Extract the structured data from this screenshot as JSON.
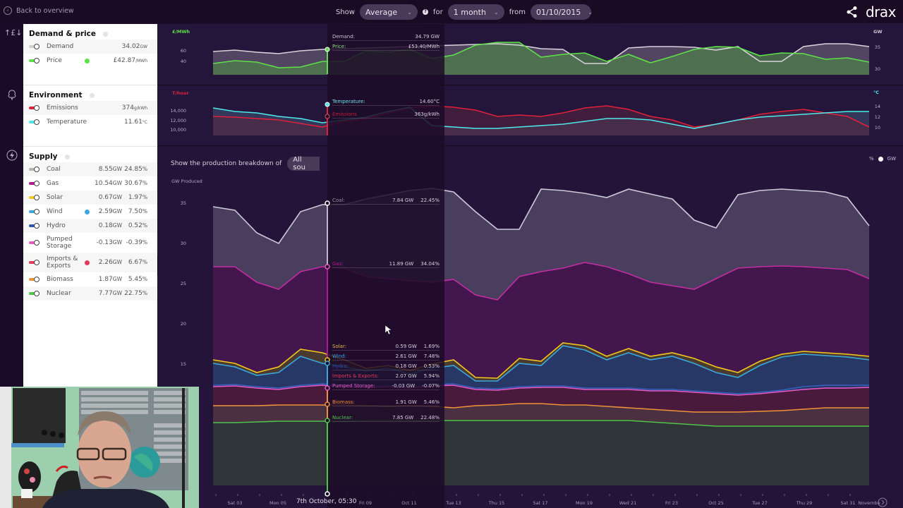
{
  "topbar": {
    "back_label": "Back to overview",
    "show_label": "Show",
    "show_value": "Average",
    "for_label": "for",
    "period_value": "1 month",
    "from_label": "from",
    "date_value": "01/10/2015",
    "brand": "drax"
  },
  "sidebar": {
    "demand_price": {
      "title": "Demand & price",
      "items": [
        {
          "label": "Demand",
          "value": "34.02",
          "unit": "GW",
          "color": "#cfcfcf"
        },
        {
          "label": "Price",
          "value": "£42.87",
          "unit": "/MWh",
          "color": "#5fe04a",
          "badge": "#5fe04a"
        }
      ]
    },
    "environment": {
      "title": "Environment",
      "items": [
        {
          "label": "Emissions",
          "value": "374",
          "unit": "g/kWh",
          "color": "#e0203a"
        },
        {
          "label": "Temperature",
          "value": "11.61",
          "unit": "°C",
          "color": "#4de8ea"
        }
      ]
    },
    "supply": {
      "title": "Supply",
      "items": [
        {
          "label": "Coal",
          "gw": "8.55",
          "pct": "24.85",
          "color": "#b5b5b5"
        },
        {
          "label": "Gas",
          "gw": "10.54",
          "pct": "30.67",
          "color": "#b01a8e"
        },
        {
          "label": "Solar",
          "gw": "0.67",
          "pct": "1.97",
          "color": "#f2c81c"
        },
        {
          "label": "Wind",
          "gw": "2.59",
          "pct": "7.50",
          "color": "#3aa8dd",
          "badge": "#3aa8dd"
        },
        {
          "label": "Hydro",
          "gw": "0.18",
          "pct": "0.52",
          "color": "#2f55b0"
        },
        {
          "label": "Pumped Storage",
          "gw": "-0.13",
          "pct": "-0.39",
          "color": "#e85bc8"
        },
        {
          "label": "Imports & Exports",
          "gw": "2.26",
          "pct": "6.67",
          "color": "#e53a5b",
          "badge": "#e53a5b"
        },
        {
          "label": "Biomass",
          "gw": "1.87",
          "pct": "5.45",
          "color": "#f0923a"
        },
        {
          "label": "Nuclear",
          "gw": "7.77",
          "pct": "22.75",
          "color": "#4fc34a"
        }
      ],
      "gw_unit": "GW",
      "pct_unit": "%"
    }
  },
  "charts": {
    "price_unit": "£/MWh",
    "price_ticks": [
      "60",
      "40"
    ],
    "demand_unit": "GW",
    "demand_ticks": [
      "35",
      "30"
    ],
    "emissions_unit": "T/hour",
    "emissions_ticks": [
      "14,000",
      "12,000",
      "10,000"
    ],
    "temp_unit": "°C",
    "temp_ticks": [
      "14",
      "12",
      "10"
    ],
    "breakdown_label": "Show the production breakdown of",
    "breakdown_value": "All sou",
    "gw_produced": "GW Produced",
    "supply_ticks": [
      "35",
      "30",
      "25",
      "20",
      "15"
    ],
    "unit_toggle": {
      "pct": "%",
      "gw": "GW"
    },
    "cursor_date": "7th October, 05:30",
    "x_labels": [
      "Sat 03",
      "Mon 05",
      "Fri 09",
      "Oct 11",
      "Tue 13",
      "Thu 15",
      "Sat 17",
      "Mon 19",
      "Wed 21",
      "Fri 23",
      "Oct 25",
      "Tue 27",
      "Thu 29",
      "Sat 31",
      "Novembe"
    ]
  },
  "tooltip": {
    "demand": {
      "label": "Demand:",
      "value": "34.79 GW"
    },
    "price": {
      "label": "Price:",
      "value": "£53.40/MWh"
    },
    "temperature": {
      "label": "Temperature:",
      "value": "14.60°C"
    },
    "emissions": {
      "label": "Emissions",
      "value": "363g/kWh"
    },
    "coal": {
      "label": "Coal:",
      "gw": "7.84 GW",
      "pct": "22.45%"
    },
    "gas": {
      "label": "Gas:",
      "gw": "11.89 GW",
      "pct": "34.04%"
    },
    "solar": {
      "label": "Solar:",
      "gw": "0.59 GW",
      "pct": "1.69%"
    },
    "wind": {
      "label": "Wind:",
      "gw": "2.61 GW",
      "pct": "7.48%"
    },
    "hydro": {
      "label": "Hydro:",
      "gw": "0.18 GW",
      "pct": "0.53%"
    },
    "imports": {
      "label": "Imports & Exports:",
      "gw": "2.07 GW",
      "pct": "5.94%"
    },
    "pumped": {
      "label": "Pumped Storage:",
      "gw": "-0.03 GW",
      "pct": "-0.07%"
    },
    "biomass": {
      "label": "Biomass:",
      "gw": "1.91 GW",
      "pct": "5.46%"
    },
    "nuclear": {
      "label": "Nuclear:",
      "gw": "7.85 GW",
      "pct": "22.48%"
    }
  },
  "colors": {
    "accent_price": "#5fe04a",
    "accent_emissions": "#e0203a",
    "accent_temp": "#4de8ea"
  }
}
